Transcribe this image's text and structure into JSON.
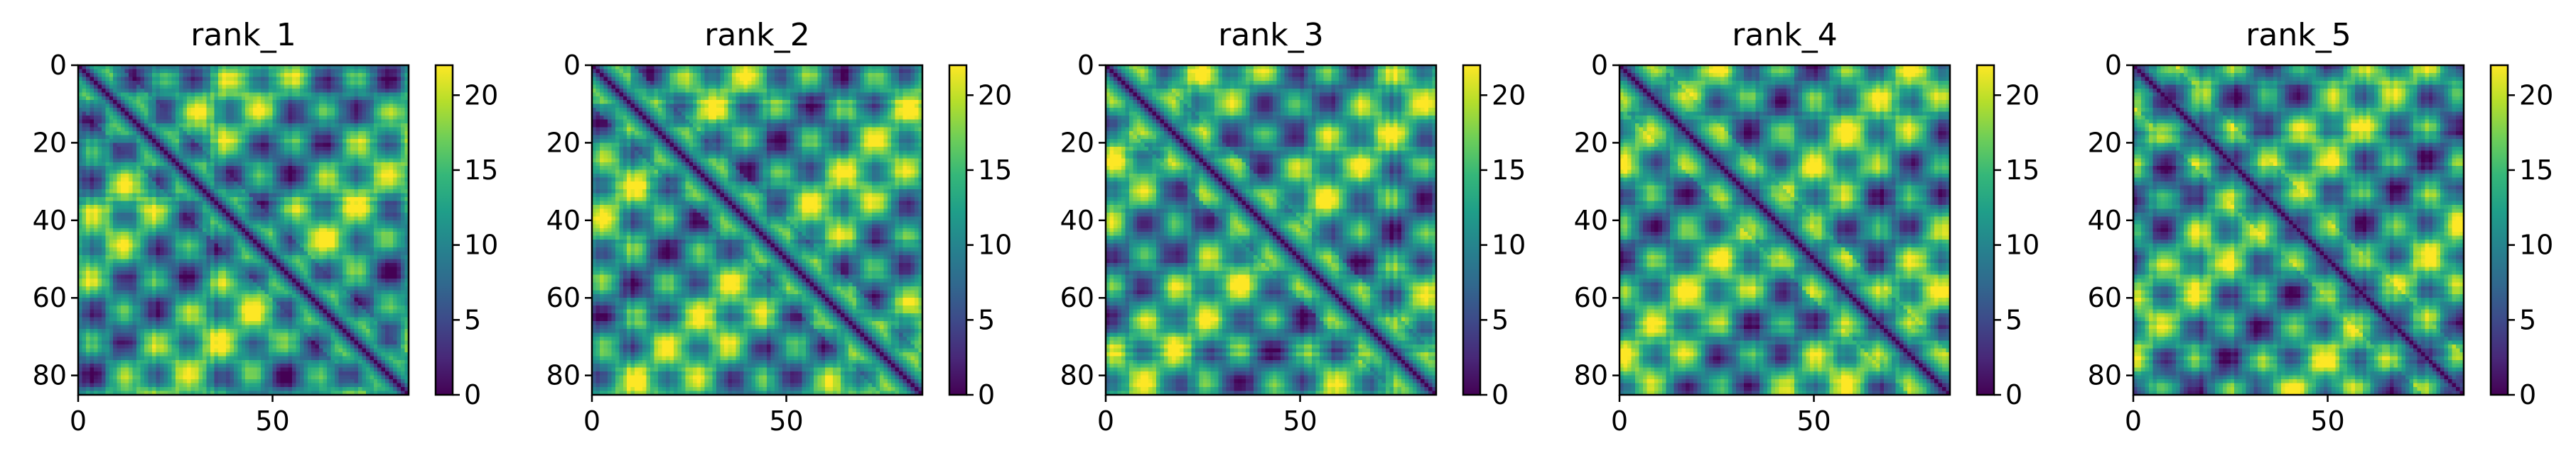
{
  "figure": {
    "colormap": "viridis",
    "colormap_stops": [
      "#440154",
      "#482878",
      "#3e4989",
      "#31688e",
      "#26828e",
      "#1f9e89",
      "#35b779",
      "#6ece58",
      "#b5de2b",
      "#fde725"
    ]
  },
  "chart_data": [
    {
      "type": "heatmap",
      "title": "rank_1",
      "size": 85,
      "seed": 1,
      "x_ticks": [
        0,
        50
      ],
      "y_ticks": [
        0,
        20,
        40,
        60,
        80
      ],
      "xlim": [
        0,
        85
      ],
      "ylim": [
        85,
        0
      ],
      "colorbar": {
        "range": [
          0,
          22
        ],
        "ticks": [
          0,
          5,
          10,
          15,
          20
        ]
      }
    },
    {
      "type": "heatmap",
      "title": "rank_2",
      "size": 85,
      "seed": 2,
      "x_ticks": [
        0,
        50
      ],
      "y_ticks": [
        0,
        20,
        40,
        60,
        80
      ],
      "xlim": [
        0,
        85
      ],
      "ylim": [
        85,
        0
      ],
      "colorbar": {
        "range": [
          0,
          22
        ],
        "ticks": [
          0,
          5,
          10,
          15,
          20
        ]
      }
    },
    {
      "type": "heatmap",
      "title": "rank_3",
      "size": 85,
      "seed": 3,
      "x_ticks": [
        0,
        50
      ],
      "y_ticks": [
        0,
        20,
        40,
        60,
        80
      ],
      "xlim": [
        0,
        85
      ],
      "ylim": [
        85,
        0
      ],
      "colorbar": {
        "range": [
          0,
          22
        ],
        "ticks": [
          0,
          5,
          10,
          15,
          20
        ]
      }
    },
    {
      "type": "heatmap",
      "title": "rank_4",
      "size": 85,
      "seed": 4,
      "x_ticks": [
        0,
        50
      ],
      "y_ticks": [
        0,
        20,
        40,
        60,
        80
      ],
      "xlim": [
        0,
        85
      ],
      "ylim": [
        85,
        0
      ],
      "colorbar": {
        "range": [
          0,
          22
        ],
        "ticks": [
          0,
          5,
          10,
          15,
          20
        ]
      }
    },
    {
      "type": "heatmap",
      "title": "rank_5",
      "size": 85,
      "seed": 5,
      "x_ticks": [
        0,
        50
      ],
      "y_ticks": [
        0,
        20,
        40,
        60,
        80
      ],
      "xlim": [
        0,
        85
      ],
      "ylim": [
        85,
        0
      ],
      "colorbar": {
        "range": [
          0,
          22
        ],
        "ticks": [
          0,
          5,
          10,
          15,
          20
        ]
      }
    }
  ]
}
